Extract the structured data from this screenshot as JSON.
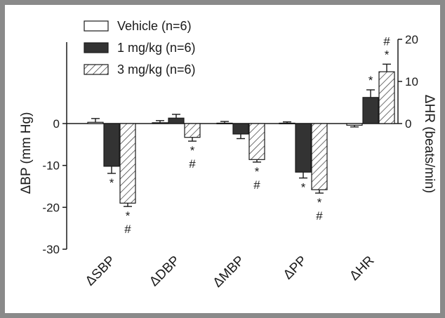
{
  "chart_data": {
    "type": "bar",
    "categories": [
      "ΔSBP",
      "ΔDBP",
      "ΔMBP",
      "ΔPP",
      "ΔHR"
    ],
    "series": [
      {
        "name": "Vehicle (n=6)",
        "pattern": "open",
        "values": [
          0.3,
          0.2,
          0.1,
          0.1,
          -0.4
        ],
        "errors": [
          0.9,
          0.5,
          0.4,
          0.3,
          0.4
        ],
        "annotations": [
          "",
          "",
          "",
          "",
          ""
        ]
      },
      {
        "name": "1 mg/kg (n=6)",
        "pattern": "solid",
        "values": [
          -10.2,
          1.3,
          -2.5,
          -11.6,
          6.2
        ],
        "errors": [
          1.7,
          0.9,
          1.1,
          1.4,
          1.8
        ],
        "annotations": [
          "*",
          "",
          "",
          "*",
          "*"
        ]
      },
      {
        "name": "3 mg/kg (n=6)",
        "pattern": "hatched",
        "values": [
          -19.0,
          -3.3,
          -8.6,
          -15.8,
          12.3
        ],
        "errors": [
          0.8,
          0.9,
          0.6,
          0.8,
          1.8
        ],
        "annotations": [
          "*\n#",
          "*\n#",
          "*\n#",
          "*\n#",
          "#\n*"
        ]
      }
    ],
    "axis_assignment": [
      "left",
      "left",
      "left",
      "left",
      "right"
    ],
    "ylabel": "ΔBP (mm Hg)",
    "ylim": [
      -30,
      0
    ],
    "yticks": [
      0,
      -10,
      -20,
      -30
    ],
    "y2label": "ΔHR (beats/min)",
    "y2lim": [
      0,
      20
    ],
    "y2ticks": [
      0,
      10,
      20
    ],
    "legend_position": "top-left",
    "grid": false,
    "colors": {
      "solid": "#333333",
      "open": "#ffffff",
      "hatch": "#333333",
      "axis": "#1a1a1a",
      "frame": "#8a8a8a"
    }
  }
}
